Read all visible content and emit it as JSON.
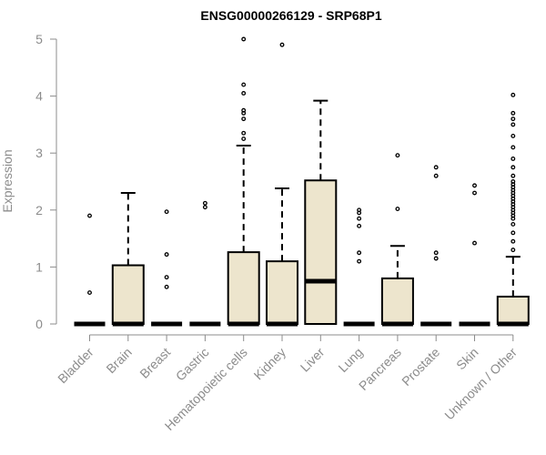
{
  "chart_data": {
    "type": "box",
    "title": "ENSG00000266129 - SRP68P1",
    "xlabel": "",
    "ylabel": "Expression",
    "ylim": [
      0,
      5
    ],
    "yticks": [
      "0",
      "1",
      "2",
      "3",
      "4",
      "5"
    ],
    "grid": false,
    "box_fill": "#ede5cd",
    "categories": [
      "Bladder",
      "Brain",
      "Breast",
      "Gastric",
      "Hematopoietic cells",
      "Kidney",
      "Liver",
      "Lung",
      "Pancreas",
      "Prostate",
      "Skin",
      "Unknown / Other"
    ],
    "boxes": [
      {
        "min": 0,
        "q1": 0,
        "median": 0,
        "q3": 0,
        "max": 0,
        "outliers": [
          0.55,
          1.9
        ]
      },
      {
        "min": 0,
        "q1": 0,
        "median": 0,
        "q3": 1.03,
        "max": 2.3,
        "outliers": []
      },
      {
        "min": 0,
        "q1": 0,
        "median": 0,
        "q3": 0,
        "max": 0,
        "outliers": [
          0.65,
          0.82,
          1.22,
          1.97
        ]
      },
      {
        "min": 0,
        "q1": 0,
        "median": 0,
        "q3": 0,
        "max": 0,
        "outliers": [
          2.05,
          2.12
        ]
      },
      {
        "min": 0,
        "q1": 0,
        "median": 0,
        "q3": 1.26,
        "max": 3.13,
        "outliers": [
          3.25,
          3.35,
          3.6,
          3.7,
          3.75,
          4.05,
          4.2,
          5.0
        ]
      },
      {
        "min": 0,
        "q1": 0,
        "median": 0,
        "q3": 1.1,
        "max": 2.38,
        "outliers": [
          4.9
        ]
      },
      {
        "min": 0,
        "q1": 0,
        "median": 0.75,
        "q3": 2.52,
        "max": 3.92,
        "outliers": []
      },
      {
        "min": 0,
        "q1": 0,
        "median": 0,
        "q3": 0,
        "max": 0,
        "outliers": [
          1.1,
          1.25,
          1.72,
          1.85,
          1.95,
          2.0
        ]
      },
      {
        "min": 0,
        "q1": 0,
        "median": 0,
        "q3": 0.8,
        "max": 1.37,
        "outliers": [
          2.02,
          2.96
        ]
      },
      {
        "min": 0,
        "q1": 0,
        "median": 0,
        "q3": 0,
        "max": 0,
        "outliers": [
          1.15,
          1.25,
          2.6,
          2.75
        ]
      },
      {
        "min": 0,
        "q1": 0,
        "median": 0,
        "q3": 0,
        "max": 0,
        "outliers": [
          1.42,
          2.3,
          2.43
        ]
      },
      {
        "min": 0,
        "q1": 0,
        "median": 0,
        "q3": 0.48,
        "max": 1.18,
        "outliers": [
          1.3,
          1.45,
          1.6,
          1.75,
          1.85,
          1.9,
          1.95,
          2.0,
          2.05,
          2.1,
          2.15,
          2.2,
          2.25,
          2.3,
          2.35,
          2.4,
          2.45,
          2.5,
          2.6,
          2.75,
          2.9,
          3.1,
          3.3,
          3.5,
          3.6,
          3.7,
          4.02
        ]
      }
    ]
  }
}
